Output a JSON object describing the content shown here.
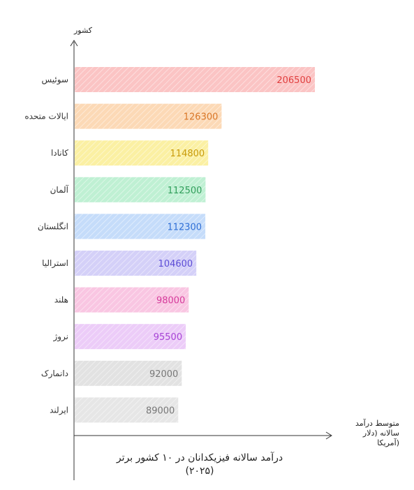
{
  "chart_data": {
    "type": "bar",
    "orientation": "horizontal",
    "title": "درآمد سالانه فیزیکدانان در ۱۰ کشور برتر (۲۰۲۵)",
    "title_lines": [
      "درآمد سالانه فیزیکدانان در ۱۰ کشور برتر",
      "(۲۰۲۵)"
    ],
    "xlabel": "متوسط درآمد سالانه (دلار آمریکا",
    "xlabel_lines": [
      "متوسط درآمد",
      "سالانه (دلار",
      "آمریکا)"
    ],
    "ylabel": "کشور",
    "categories": [
      "سوئیس",
      "ایالات متحده",
      "کانادا",
      "آلمان",
      "انگلستان",
      "استرالیا",
      "هلند",
      "نروژ",
      "دانمارک",
      "ایرلند"
    ],
    "values": [
      206500,
      126300,
      114800,
      112500,
      112300,
      104600,
      98000,
      95500,
      92000,
      89000
    ],
    "colors": {
      "fills": [
        "#fbc4c4",
        "#fcd9b6",
        "#fbf0a3",
        "#bff0d3",
        "#c5dcfa",
        "#d4d0f8",
        "#f9c6e2",
        "#ecccf8",
        "#e2e2e2",
        "#e6e6e6"
      ],
      "labels": [
        "#e03c3c",
        "#d9782a",
        "#c89b0c",
        "#2f9e5a",
        "#2f6fd6",
        "#5b4bd6",
        "#d63a9b",
        "#a846d6",
        "#777777",
        "#777777"
      ]
    },
    "bar_pattern": "diagonal-hatch",
    "xlim": [
      0,
      225000
    ],
    "grid": false,
    "legend": "none"
  }
}
